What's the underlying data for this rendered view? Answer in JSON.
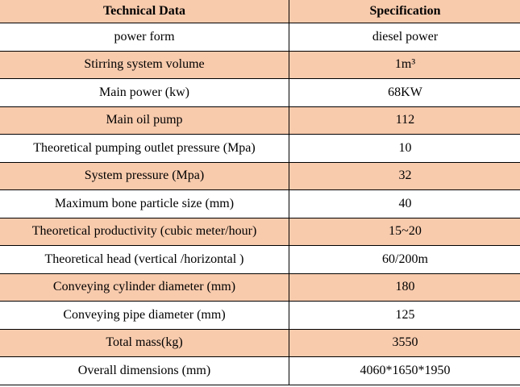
{
  "header": {
    "col1": "Technical Data",
    "col2": "Specification"
  },
  "colors": {
    "shaded_row": "#F8CBAD",
    "plain_row": "#FFFFFF"
  },
  "rows": [
    {
      "label": "power form",
      "value": "diesel power"
    },
    {
      "label": "Stirring system volume",
      "value": "1m³"
    },
    {
      "label": "Main power (kw)",
      "value": "68KW"
    },
    {
      "label": "Main oil pump",
      "value": "112"
    },
    {
      "label": "Theoretical pumping outlet pressure (Mpa)",
      "value": "10"
    },
    {
      "label": "System pressure (Mpa)",
      "value": "32"
    },
    {
      "label": "Maximum bone particle size (mm)",
      "value": "40"
    },
    {
      "label": "Theoretical productivity (cubic meter/hour)",
      "value": "15~20"
    },
    {
      "label": "Theoretical head (vertical /horizontal )",
      "value": "60/200m"
    },
    {
      "label": "Conveying cylinder diameter (mm)",
      "value": "180"
    },
    {
      "label": "Conveying pipe diameter (mm)",
      "value": "125"
    },
    {
      "label": "Total mass(kg)",
      "value": "3550"
    },
    {
      "label": "Overall dimensions (mm)",
      "value": "4060*1650*1950"
    }
  ]
}
